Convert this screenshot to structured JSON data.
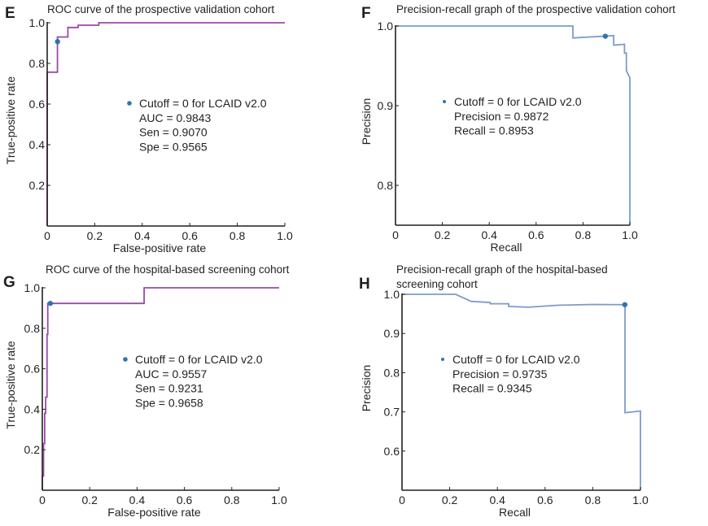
{
  "colors": {
    "roc_line": "#9b4aa8",
    "pr_line": "#7f9acb",
    "marker": "#2f73b3",
    "axis": "#231f20"
  },
  "chart_data": [
    {
      "panel": "E",
      "type": "line",
      "title": "ROC curve of the prospective validation cohort",
      "xlabel": "False-positive rate",
      "ylabel": "True-positive rate",
      "xlim": [
        0,
        1
      ],
      "ylim": [
        0,
        1
      ],
      "xticks": [
        "0",
        "0.2",
        "0.4",
        "0.6",
        "0.8",
        "1.0"
      ],
      "xtick_values": [
        0,
        0.2,
        0.4,
        0.6,
        0.8,
        1.0
      ],
      "yticks": [
        "0.2",
        "0.4",
        "0.6",
        "0.8",
        "1.0"
      ],
      "ytick_values": [
        0.2,
        0.4,
        0.6,
        0.8,
        1.0
      ],
      "grid": false,
      "line_color": "#9b4aa8",
      "x": [
        0,
        0,
        0.043,
        0.043,
        0.087,
        0.087,
        0.13,
        0.13,
        0.217,
        0.217,
        1.0
      ],
      "y": [
        0,
        0.757,
        0.757,
        0.93,
        0.93,
        0.977,
        0.977,
        0.988,
        0.988,
        1.0,
        1.0
      ],
      "marker": {
        "x": 0.0435,
        "y": 0.907
      },
      "annotation": [
        "Cutoff = 0 for LCAID v2.0",
        "AUC = 0.9843",
        "Sen = 0.9070",
        "Spe = 0.9565"
      ]
    },
    {
      "panel": "F",
      "type": "line",
      "title": "Precision-recall graph of the prospective validation cohort",
      "xlabel": "Recall",
      "ylabel": "Precision",
      "xlim": [
        0,
        1
      ],
      "ylim": [
        0.75,
        1
      ],
      "xticks": [
        "0",
        "0.2",
        "0.4",
        "0.6",
        "0.8",
        "1.0"
      ],
      "xtick_values": [
        0,
        0.2,
        0.4,
        0.6,
        0.8,
        1.0
      ],
      "yticks": [
        "0.8",
        "0.9",
        "1.0"
      ],
      "ytick_values": [
        0.8,
        0.9,
        1.0
      ],
      "grid": false,
      "line_color": "#7f9acb",
      "x": [
        0,
        0.757,
        0.757,
        0.931,
        0.931,
        0.977,
        0.977,
        0.985,
        0.985,
        1.0,
        1.0
      ],
      "y": [
        1.0,
        1.0,
        0.985,
        0.988,
        0.976,
        0.977,
        0.966,
        0.966,
        0.944,
        0.935,
        0.75
      ],
      "marker": {
        "x": 0.8953,
        "y": 0.9872
      },
      "annotation": [
        "Cutoff = 0 for LCAID v2.0",
        "Precision = 0.9872",
        "Recall = 0.8953"
      ]
    },
    {
      "panel": "G",
      "type": "line",
      "title": "ROC curve of the hospital-based screening cohort",
      "xlabel": "False-positive rate",
      "ylabel": "True-positive rate",
      "xlim": [
        0,
        1
      ],
      "ylim": [
        0,
        1
      ],
      "xticks": [
        "0",
        "0.2",
        "0.4",
        "0.6",
        "0.8",
        "1.0"
      ],
      "xtick_values": [
        0,
        0.2,
        0.4,
        0.6,
        0.8,
        1.0
      ],
      "yticks": [
        "0.2",
        "0.4",
        "0.6",
        "0.8",
        "1.0"
      ],
      "ytick_values": [
        0.2,
        0.4,
        0.6,
        0.8,
        1.0
      ],
      "grid": false,
      "line_color": "#9b4aa8",
      "x": [
        0,
        0,
        0.005,
        0.005,
        0.01,
        0.01,
        0.014,
        0.014,
        0.02,
        0.02,
        0.023,
        0.023,
        0.43,
        0.43,
        1.0
      ],
      "y": [
        0,
        0.07,
        0.07,
        0.23,
        0.23,
        0.38,
        0.38,
        0.46,
        0.46,
        0.77,
        0.77,
        0.923,
        0.923,
        1.0,
        1.0
      ],
      "marker": {
        "x": 0.034,
        "y": 0.9231
      },
      "annotation": [
        "Cutoff = 0 for LCAID v2.0",
        "AUC = 0.9557",
        "Sen = 0.9231",
        "Spe = 0.9658"
      ]
    },
    {
      "panel": "H",
      "type": "line",
      "title": "Precision-recall graph of the hospital-based screening cohort",
      "title_lines": [
        "Precision-recall graph of the hospital-based",
        "screening cohort"
      ],
      "xlabel": "Recall",
      "ylabel": "Precision",
      "xlim": [
        0,
        1
      ],
      "ylim": [
        0.5,
        1
      ],
      "xticks": [
        "0",
        "0.2",
        "0.4",
        "0.6",
        "0.8",
        "1.0"
      ],
      "xtick_values": [
        0,
        0.2,
        0.4,
        0.6,
        0.8,
        1.0
      ],
      "yticks": [
        "0.6",
        "0.7",
        "0.8",
        "0.9",
        "1.0"
      ],
      "ytick_values": [
        0.6,
        0.7,
        0.8,
        0.9,
        1.0
      ],
      "grid": false,
      "line_color": "#7f9acb",
      "x": [
        0,
        0.225,
        0.29,
        0.37,
        0.37,
        0.447,
        0.447,
        0.53,
        0.65,
        0.8,
        0.935,
        0.935,
        1.0,
        1.0
      ],
      "y": [
        1.0,
        1.0,
        0.982,
        0.979,
        0.976,
        0.976,
        0.969,
        0.967,
        0.972,
        0.974,
        0.9735,
        0.698,
        0.702,
        0.5
      ],
      "marker": {
        "x": 0.9345,
        "y": 0.9735
      },
      "annotation": [
        "Cutoff = 0 for LCAID v2.0",
        "Precision = 0.9735",
        "Recall = 0.9345"
      ]
    }
  ]
}
